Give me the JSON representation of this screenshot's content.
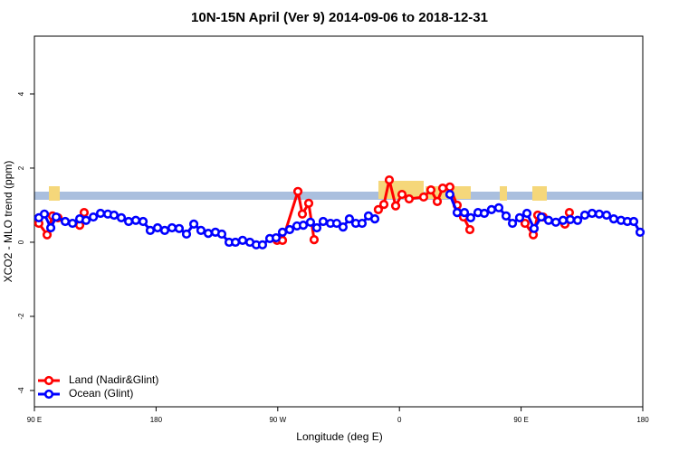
{
  "chart_data": {
    "type": "line",
    "title": "10N-15N April (Ver 9)   2014-09-06 to 2018-12-31",
    "x_label": "Longitude (deg E)",
    "y_label": "XCO2 - MLO trend (ppm)",
    "xlim": [
      90,
      540
    ],
    "xticks": [
      {
        "value": 90,
        "label": "90 E"
      },
      180,
      {
        "value": 270,
        "label": "90 W"
      },
      {
        "value": 360,
        "label": "0"
      },
      {
        "value": 450,
        "label": "90 E"
      },
      {
        "value": 540,
        "label": "180"
      }
    ],
    "ylim": [
      -4.44,
      5.56
    ],
    "yticks": [
      -4,
      -2,
      0,
      2,
      4
    ],
    "grid": false,
    "legend": "bottomleft",
    "series": [
      {
        "name": "Land (Nadir&Glint)",
        "color": "#ff0000",
        "x": [
          93.3,
          99.4,
          103.4,
          107.4,
          115,
          123.5,
          126.8,
          200,
          269.5,
          273.5,
          284.9,
          288.2,
          292.9,
          296.9,
          320,
          344.4,
          348.5,
          352.5,
          357.2,
          361.9,
          367.2,
          377.9,
          383.3,
          388.0,
          392.0,
          397.3,
          402.7,
          407.4,
          412.1,
          430,
          452.9,
          459.0,
          462.3,
          466.3,
          475,
          482.4,
          485.7
        ],
        "values": [
          0.51,
          0.2,
          0.71,
          0.66,
          null,
          0.46,
          0.8,
          null,
          0.05,
          0.05,
          1.37,
          0.76,
          1.05,
          0.07,
          null,
          0.88,
          1.02,
          1.68,
          0.98,
          1.29,
          1.17,
          1.22,
          1.41,
          1.1,
          1.46,
          1.49,
          1.0,
          0.68,
          0.34,
          null,
          0.51,
          0.2,
          0.73,
          0.68,
          null,
          0.49,
          0.8
        ]
      },
      {
        "name": "Ocean (Glint)",
        "color": "#0000ff",
        "x": [
          93.3,
          97.4,
          102.1,
          106.1,
          112.8,
          118.2,
          123.5,
          128.2,
          133.6,
          138.9,
          144.3,
          148.9,
          154.3,
          159.7,
          165.0,
          170.4,
          175.7,
          181.1,
          186.4,
          191.8,
          197.1,
          202.5,
          207.9,
          213.2,
          218.6,
          223.9,
          228.6,
          234.0,
          238.7,
          244.0,
          249.4,
          254.1,
          258.7,
          264.1,
          268.8,
          273.5,
          278.8,
          284.2,
          288.9,
          294.2,
          298.9,
          303.6,
          309.0,
          313.6,
          318.3,
          323.0,
          327.7,
          332.4,
          337.1,
          341.8,
          370,
          397.3,
          402.7,
          408.1,
          412.7,
          418.1,
          422.8,
          428.1,
          433.5,
          438.9,
          443.6,
          448.9,
          454.3,
          459.6,
          465.0,
          470.3,
          475.7,
          481.0,
          486.4,
          491.8,
          497.1,
          502.5,
          507.8,
          513.2,
          518.5,
          523.9,
          528.6,
          533.3,
          538.0
        ],
        "values": [
          0.66,
          0.76,
          0.39,
          0.68,
          0.56,
          0.51,
          0.63,
          0.59,
          0.68,
          0.78,
          0.76,
          0.73,
          0.66,
          0.56,
          0.59,
          0.56,
          0.32,
          0.39,
          0.32,
          0.39,
          0.37,
          0.22,
          0.49,
          0.32,
          0.24,
          0.27,
          0.22,
          0,
          0,
          0.05,
          0,
          -0.07,
          -0.07,
          0.1,
          0.12,
          0.27,
          0.34,
          0.44,
          0.46,
          0.54,
          0.39,
          0.56,
          0.51,
          0.51,
          0.41,
          0.63,
          0.51,
          0.51,
          0.71,
          0.63,
          null,
          1.29,
          0.8,
          0.8,
          0.66,
          0.8,
          0.78,
          0.88,
          0.93,
          0.71,
          0.51,
          0.66,
          0.78,
          0.37,
          0.68,
          0.59,
          0.54,
          0.59,
          0.61,
          0.59,
          0.73,
          0.78,
          0.76,
          0.73,
          0.63,
          0.59,
          0.56,
          0.56,
          0.27
        ]
      }
    ]
  }
}
